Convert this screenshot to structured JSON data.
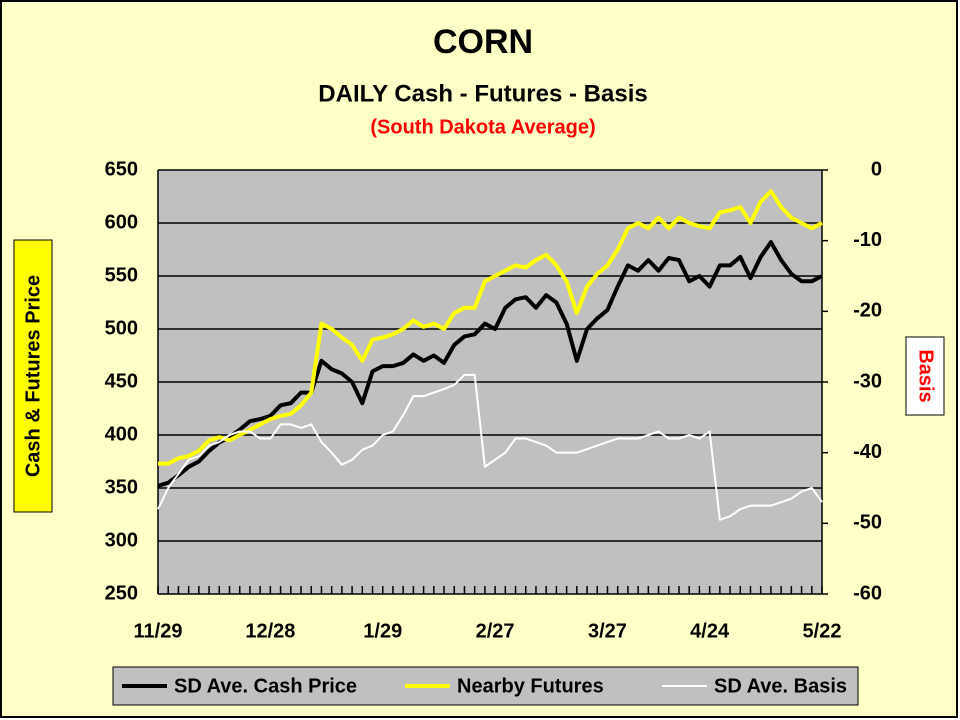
{
  "chart_data": {
    "type": "line",
    "title": "CORN",
    "subtitle": "DAILY Cash - Futures - Basis",
    "annotations": [
      "(South Dakota Average)"
    ],
    "y_label": "Cash & Futures Price",
    "y2_label": "Basis",
    "categories": [
      "11/29",
      null,
      null,
      null,
      null,
      null,
      null,
      null,
      null,
      null,
      null,
      "12/28",
      null,
      null,
      null,
      null,
      null,
      null,
      null,
      null,
      null,
      null,
      "1/29",
      null,
      null,
      null,
      null,
      null,
      null,
      null,
      null,
      null,
      null,
      "2/27",
      null,
      null,
      null,
      null,
      null,
      null,
      null,
      null,
      null,
      null,
      "3/27",
      null,
      null,
      null,
      null,
      null,
      null,
      null,
      null,
      null,
      "4/24",
      null,
      null,
      null,
      null,
      null,
      null,
      null,
      null,
      null,
      null,
      "5/22"
    ],
    "ylim": [
      250,
      650
    ],
    "yticks": [
      250,
      300,
      350,
      400,
      450,
      500,
      550,
      600,
      650
    ],
    "y2lim": [
      -60,
      0
    ],
    "y2ticks": [
      -60,
      -50,
      -40,
      -30,
      -20,
      -10,
      0
    ],
    "grid": true,
    "legend": "bottom",
    "series": [
      {
        "name": "SD Ave. Cash Price",
        "color": "#000000",
        "values": [
          352,
          355,
          362,
          370,
          375,
          385,
          393,
          398,
          405,
          413,
          415,
          418,
          428,
          430,
          440,
          440,
          470,
          462,
          458,
          450,
          430,
          460,
          465,
          465,
          468,
          476,
          470,
          475,
          468,
          485,
          493,
          495,
          505,
          500,
          520,
          528,
          530,
          520,
          532,
          525,
          505,
          470,
          500,
          510,
          518,
          540,
          560,
          555,
          565,
          555,
          567,
          565,
          545,
          550,
          540,
          560,
          560,
          568,
          548,
          568,
          582,
          565,
          552,
          545,
          545,
          550
        ]
      },
      {
        "name": "Nearby Futures",
        "color": "#ffff00",
        "values": [
          373,
          373,
          378,
          380,
          385,
          395,
          398,
          395,
          400,
          405,
          410,
          415,
          418,
          420,
          428,
          440,
          505,
          500,
          492,
          485,
          470,
          490,
          492,
          495,
          500,
          508,
          502,
          505,
          500,
          515,
          520,
          520,
          545,
          550,
          555,
          560,
          558,
          565,
          570,
          560,
          545,
          515,
          540,
          552,
          560,
          575,
          595,
          600,
          595,
          605,
          595,
          605,
          600,
          597,
          595,
          610,
          612,
          615,
          600,
          620,
          630,
          615,
          605,
          600,
          595,
          600
        ]
      },
      {
        "name": "SD Ave. Basis",
        "color": "#ffffff",
        "axis": "y2",
        "values": [
          -48,
          -45,
          -43,
          -41,
          -40.5,
          -39,
          -38.5,
          -37.5,
          -37,
          -37,
          -38,
          -38,
          -36,
          -36,
          -36.5,
          -36,
          -38.5,
          -40,
          -41.7,
          -41,
          -39.6,
          -39,
          -37.5,
          -37,
          -34.7,
          -32,
          -32,
          -31.5,
          -31,
          -30.4,
          -29,
          -29,
          -42,
          -41,
          -40,
          -38,
          -38,
          -38.5,
          -39,
          -40,
          -40,
          -40,
          -39.5,
          -39,
          -38.5,
          -38,
          -38,
          -38,
          -37.5,
          -37,
          -38,
          -38,
          -37.5,
          -38,
          -37,
          -49.5,
          -49,
          -48,
          -47.5,
          -47.5,
          -47.5,
          -47,
          -46.5,
          -45.5,
          -45,
          -47
        ]
      }
    ]
  }
}
